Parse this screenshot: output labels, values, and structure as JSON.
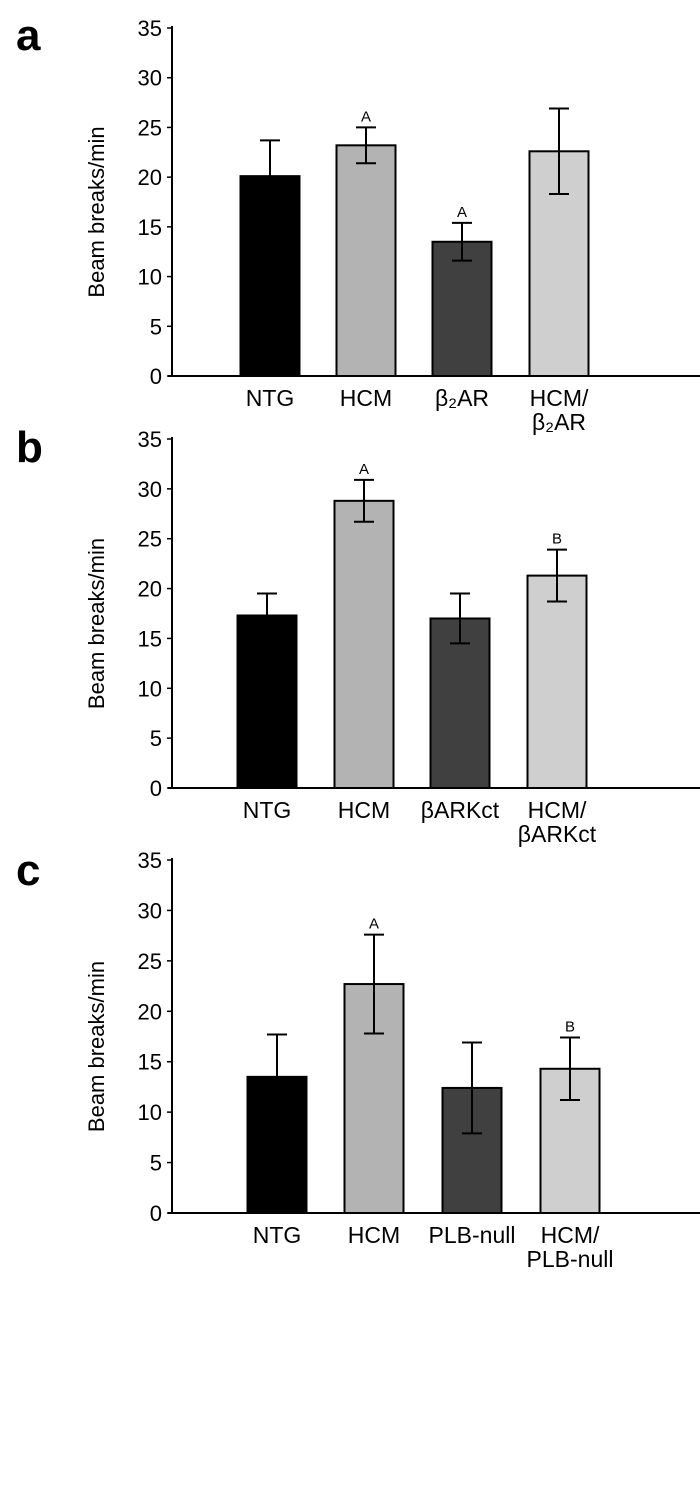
{
  "chart_data": [
    {
      "type": "bar",
      "panel_label": "a",
      "ylabel": "Beam breaks/min",
      "ylim": [
        0,
        35
      ],
      "yticks": [
        0,
        5,
        10,
        15,
        20,
        25,
        30,
        35
      ],
      "categories": [
        [
          "NTG"
        ],
        [
          "HCM"
        ],
        [
          "β₂AR"
        ],
        [
          "HCM/",
          "β₂AR"
        ]
      ],
      "values": [
        20.1,
        23.2,
        13.5,
        22.6
      ],
      "errors": [
        3.6,
        1.8,
        1.9,
        4.3
      ],
      "significance": [
        "",
        "A",
        "A",
        ""
      ],
      "colors": [
        "#000000",
        "#b3b3b3",
        "#404040",
        "#cfcfcf"
      ],
      "grid": false
    },
    {
      "type": "bar",
      "panel_label": "b",
      "ylabel": "Beam breaks/min",
      "ylim": [
        0,
        35
      ],
      "yticks": [
        0,
        5,
        10,
        15,
        20,
        25,
        30,
        35
      ],
      "categories": [
        [
          "NTG"
        ],
        [
          "HCM"
        ],
        [
          "βARKct"
        ],
        [
          "HCM/",
          "βARKct"
        ]
      ],
      "values": [
        17.3,
        28.8,
        17.0,
        21.3
      ],
      "errors": [
        2.2,
        2.1,
        2.5,
        2.6
      ],
      "significance": [
        "",
        "A",
        "",
        "B"
      ],
      "colors": [
        "#000000",
        "#b3b3b3",
        "#404040",
        "#cfcfcf"
      ],
      "grid": false
    },
    {
      "type": "bar",
      "panel_label": "c",
      "ylabel": "Beam breaks/min",
      "ylim": [
        0,
        35
      ],
      "yticks": [
        0,
        5,
        10,
        15,
        20,
        25,
        30,
        35
      ],
      "categories": [
        [
          "NTG"
        ],
        [
          "HCM"
        ],
        [
          "PLB-null"
        ],
        [
          "HCM/",
          "PLB-null"
        ]
      ],
      "values": [
        13.5,
        22.7,
        12.4,
        14.3
      ],
      "errors": [
        4.2,
        4.9,
        4.5,
        3.1
      ],
      "significance": [
        "",
        "A",
        "",
        "B"
      ],
      "colors": [
        "#000000",
        "#b3b3b3",
        "#404040",
        "#cfcfcf"
      ],
      "grid": false
    }
  ]
}
